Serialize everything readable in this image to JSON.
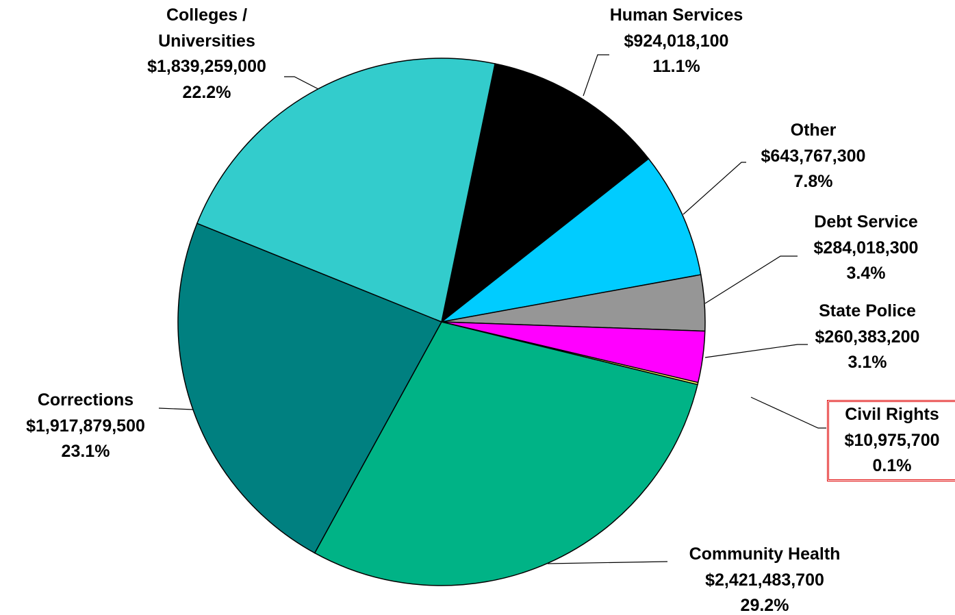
{
  "chart_data": {
    "type": "pie",
    "categories": [
      "Human Services",
      "Other",
      "Debt Service",
      "State Police",
      "Civil Rights",
      "Community Health",
      "Corrections",
      "Colleges / Universities"
    ],
    "values": [
      924018100,
      643767300,
      284018300,
      260383200,
      10975700,
      2421483700,
      1917879500,
      1839259000
    ],
    "value_labels": [
      "$924,018,100",
      "$643,767,300",
      "$284,018,300",
      "$260,383,200",
      "$10,975,700",
      "$2,421,483,700",
      "$1,917,879,500",
      "$1,839,259,000"
    ],
    "share_labels": [
      "11.1%",
      "7.8%",
      "3.4%",
      "3.1%",
      "0.1%",
      "29.2%",
      "23.1%",
      "22.2%"
    ],
    "colors": [
      "#000000",
      "#00ccff",
      "#969696",
      "#ff00ff",
      "#ffff66",
      "#00b386",
      "#008080",
      "#33cccc"
    ]
  }
}
